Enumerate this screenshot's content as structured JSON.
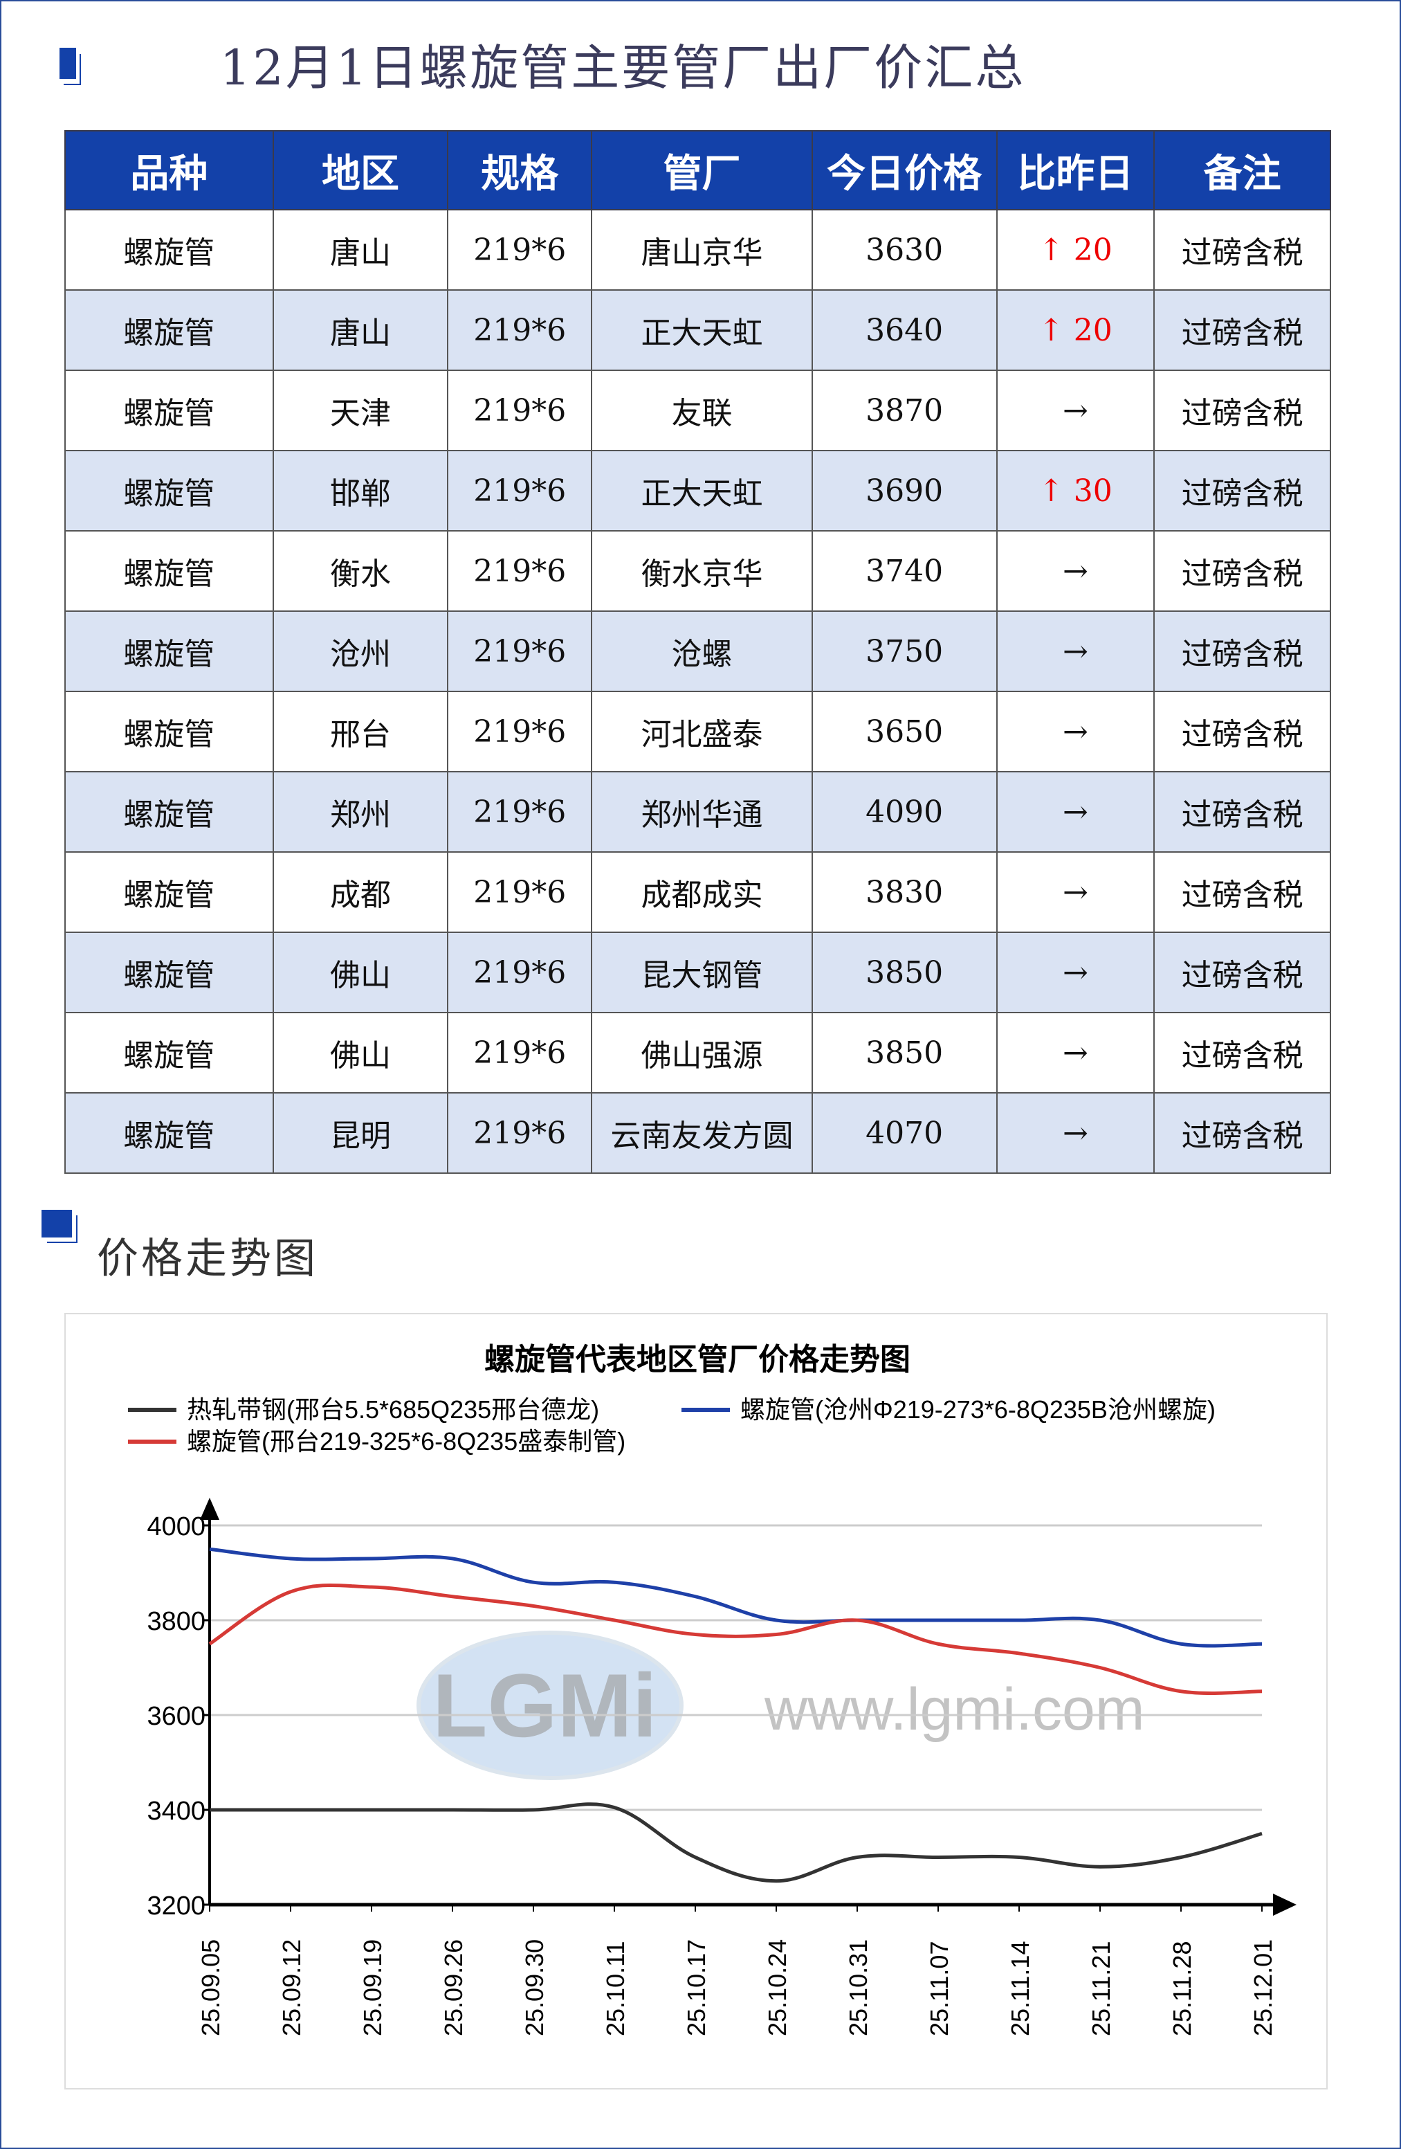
{
  "title": "12月1日螺旋管主要管厂出厂价汇总",
  "table": {
    "headers": [
      "品种",
      "地区",
      "规格",
      "管厂",
      "今日价格",
      "比昨日",
      "备注"
    ],
    "rows": [
      [
        "螺旋管",
        "唐山",
        "219*6",
        "唐山京华",
        "3630",
        "↑ 20",
        "过磅含税"
      ],
      [
        "螺旋管",
        "唐山",
        "219*6",
        "正大天虹",
        "3640",
        "↑ 20",
        "过磅含税"
      ],
      [
        "螺旋管",
        "天津",
        "219*6",
        "友联",
        "3870",
        "→",
        "过磅含税"
      ],
      [
        "螺旋管",
        "邯郸",
        "219*6",
        "正大天虹",
        "3690",
        "↑ 30",
        "过磅含税"
      ],
      [
        "螺旋管",
        "衡水",
        "219*6",
        "衡水京华",
        "3740",
        "→",
        "过磅含税"
      ],
      [
        "螺旋管",
        "沧州",
        "219*6",
        "沧螺",
        "3750",
        "→",
        "过磅含税"
      ],
      [
        "螺旋管",
        "邢台",
        "219*6",
        "河北盛泰",
        "3650",
        "→",
        "过磅含税"
      ],
      [
        "螺旋管",
        "郑州",
        "219*6",
        "郑州华通",
        "4090",
        "→",
        "过磅含税"
      ],
      [
        "螺旋管",
        "成都",
        "219*6",
        "成都成实",
        "3830",
        "→",
        "过磅含税"
      ],
      [
        "螺旋管",
        "佛山",
        "219*6",
        "昆大钢管",
        "3850",
        "→",
        "过磅含税"
      ],
      [
        "螺旋管",
        "佛山",
        "219*6",
        "佛山强源",
        "3850",
        "→",
        "过磅含税"
      ],
      [
        "螺旋管",
        "昆明",
        "219*6",
        "云南友发方圆",
        "4070",
        "→",
        "过磅含税"
      ]
    ]
  },
  "section_title": "价格走势图",
  "colors": {
    "header": "#1341a9",
    "alt_row": "#dae3f3",
    "up": "#e00000"
  },
  "chart_data": {
    "type": "line",
    "title": "螺旋管代表地区管厂价格走势图",
    "watermark": "LGMi www.lgmi.com",
    "x": [
      "25.09.05",
      "25.09.12",
      "25.09.19",
      "25.09.26",
      "25.09.30",
      "25.10.11",
      "25.10.17",
      "25.10.24",
      "25.10.31",
      "25.11.07",
      "25.11.14",
      "25.11.21",
      "25.11.28",
      "25.12.01"
    ],
    "ylim": [
      3200,
      4000
    ],
    "yticks": [
      3200,
      3400,
      3600,
      3800,
      4000
    ],
    "grid": true,
    "legend": "top",
    "series": [
      {
        "name": "热轧带钢(邢台5.5*685Q235邢台德龙)",
        "color": "#333333",
        "values": [
          3400,
          3400,
          3400,
          3400,
          3400,
          3405,
          3300,
          3250,
          3300,
          3300,
          3300,
          3280,
          3300,
          3350
        ]
      },
      {
        "name": "螺旋管(沧州Φ219-273*6-8Q235B沧州螺旋)",
        "color": "#1e40a8",
        "values": [
          3950,
          3930,
          3930,
          3930,
          3880,
          3880,
          3850,
          3800,
          3800,
          3800,
          3800,
          3800,
          3750,
          3750
        ]
      },
      {
        "name": "螺旋管(邢台219-325*6-8Q235盛泰制管)",
        "color": "#d63a36",
        "values": [
          3750,
          3860,
          3870,
          3850,
          3830,
          3800,
          3770,
          3770,
          3800,
          3750,
          3730,
          3700,
          3650,
          3650
        ]
      }
    ]
  }
}
